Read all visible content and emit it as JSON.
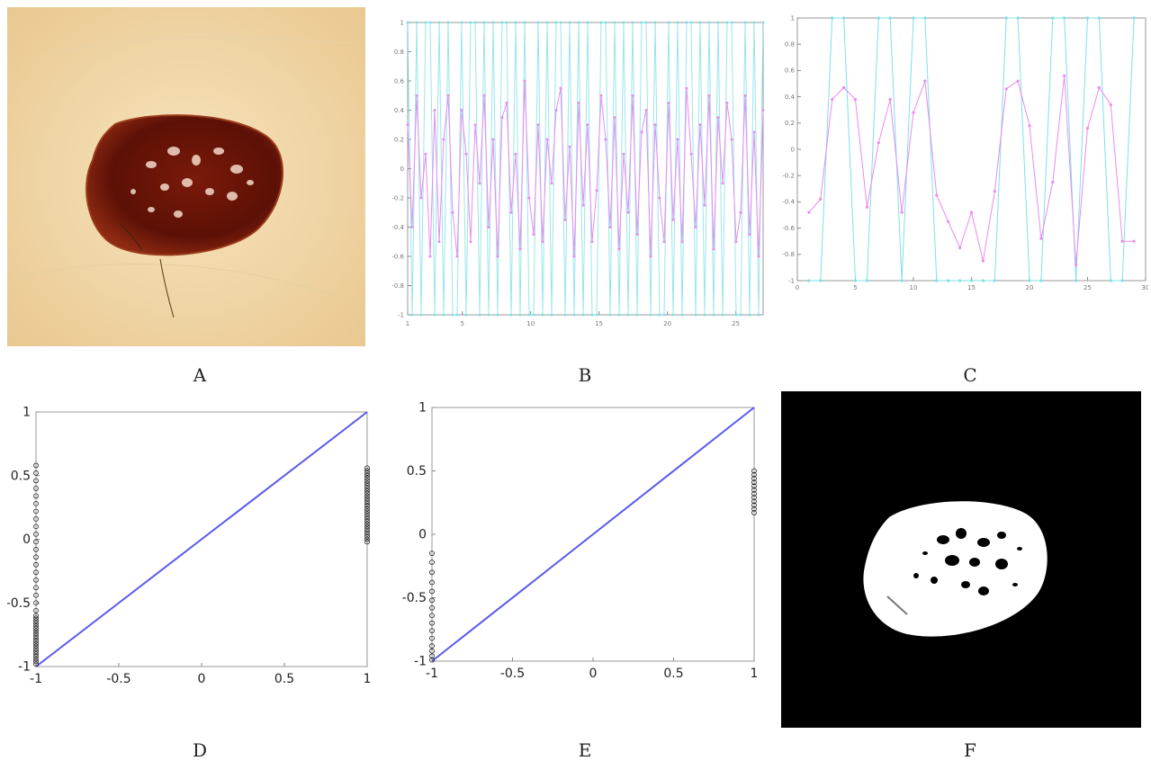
{
  "captions": [
    "A",
    "B",
    "C",
    "D",
    "E",
    "F"
  ],
  "colors": {
    "skin": "#f1d7a8",
    "lesion": "#6e1508",
    "lesion_edge": "#8e2a12",
    "cyan_series": "#7fe0e6",
    "magenta_series": "#e98bf0",
    "blue_series": "#5a5af0",
    "black_points": "#222222",
    "mask_bg": "#000000",
    "mask_fg": "#ffffff"
  },
  "icons": {
    "A": "dermoscopic-lesion-photo",
    "F": "binary-segmentation-mask"
  },
  "chart_data": [
    {
      "panel": "B",
      "type": "line",
      "title": "",
      "xlabel": "",
      "ylabel": "",
      "xlim": [
        1,
        27
      ],
      "ylim": [
        -1,
        1
      ],
      "xticks": [
        "1",
        "5",
        "10",
        "15",
        "20",
        "25"
      ],
      "yticks": [
        "1",
        "0.8",
        "0.6",
        "0.4",
        "0.2",
        "0",
        "-0.2",
        "-0.4",
        "-0.6",
        "-0.8",
        "-1"
      ],
      "series": [
        {
          "values": [
            1,
            -1,
            1,
            -1,
            1,
            1,
            -1,
            1,
            -1,
            1,
            -1,
            -1,
            1,
            -1,
            1,
            1,
            -1,
            1,
            -1,
            1,
            -1,
            1,
            1,
            -1,
            1,
            -1,
            1,
            -1,
            -1,
            1,
            -1,
            1,
            -1,
            1,
            1,
            -1,
            1,
            -1,
            1,
            -1,
            1,
            -1,
            -1,
            1,
            1,
            -1,
            1,
            -1,
            1,
            -1,
            1,
            -1,
            1,
            1,
            -1,
            1,
            -1,
            -1,
            1,
            -1,
            1,
            -1,
            1,
            1,
            -1,
            1,
            -1,
            1,
            -1,
            1,
            -1,
            1,
            1,
            -1,
            -1,
            1,
            -1,
            1,
            -1,
            1
          ]
        },
        {
          "values": [
            0.3,
            -0.4,
            0.5,
            -0.2,
            0.1,
            -0.6,
            0.4,
            -0.5,
            0.2,
            0.5,
            -0.3,
            -0.6,
            0.4,
            0.1,
            -0.5,
            0.3,
            -0.1,
            0.5,
            -0.4,
            0.2,
            -0.6,
            0.35,
            0.45,
            -0.3,
            0.1,
            -0.55,
            0.6,
            -0.2,
            -0.45,
            0.3,
            -0.5,
            0.2,
            -0.1,
            0.4,
            0.55,
            -0.35,
            0.15,
            -0.6,
            0.45,
            -0.25,
            0.3,
            -0.5,
            -0.15,
            0.5,
            0.2,
            -0.4,
            0.35,
            -0.55,
            0.1,
            -0.3,
            0.5,
            -0.45,
            0.25,
            0.4,
            -0.6,
            0.3,
            -0.2,
            -0.5,
            0.45,
            -0.35,
            0.2,
            -0.5,
            0.55,
            0.1,
            -0.4,
            0.3,
            -0.25,
            0.5,
            -0.55,
            0.35,
            -0.1,
            0.45,
            0.2,
            -0.5,
            -0.3,
            0.5,
            -0.45,
            0.25,
            -0.6,
            0.4
          ]
        }
      ]
    },
    {
      "panel": "C",
      "type": "line",
      "title": "",
      "xlabel": "",
      "ylabel": "",
      "xlim": [
        0,
        30
      ],
      "ylim": [
        -1,
        1
      ],
      "xticks": [
        "0",
        "5",
        "10",
        "15",
        "20",
        "25",
        "30"
      ],
      "yticks": [
        "1",
        "0.8",
        "0.6",
        "0.4",
        "0.2",
        "0",
        "-0.2",
        "-0.4",
        "-0.6",
        "-0.8",
        "-1"
      ],
      "series": [
        {
          "x": [
            1,
            2,
            3,
            4,
            5,
            6,
            7,
            8,
            9,
            10,
            11,
            12,
            13,
            14,
            15,
            16,
            17,
            18,
            19,
            20,
            21,
            22,
            23,
            24,
            25,
            26,
            27,
            28,
            29
          ],
          "values": [
            -1,
            -1,
            1,
            1,
            -1,
            -1,
            1,
            1,
            -1,
            1,
            1,
            -1,
            -1,
            -1,
            -1,
            -1,
            -1,
            1,
            1,
            -1,
            -1,
            1,
            1,
            -1,
            1,
            1,
            -1,
            -1,
            1
          ]
        },
        {
          "x": [
            1,
            2,
            3,
            4,
            5,
            6,
            7,
            8,
            9,
            10,
            11,
            12,
            13,
            14,
            15,
            16,
            17,
            18,
            19,
            20,
            21,
            22,
            23,
            24,
            25,
            26,
            27,
            28,
            29
          ],
          "values": [
            -0.48,
            -0.38,
            0.38,
            0.47,
            0.38,
            -0.44,
            0.05,
            0.38,
            -0.48,
            0.28,
            0.52,
            -0.35,
            -0.55,
            -0.75,
            -0.48,
            -0.85,
            -0.32,
            0.46,
            0.52,
            0.18,
            -0.68,
            -0.25,
            0.56,
            -0.88,
            0.16,
            0.47,
            0.34,
            -0.7,
            -0.7
          ]
        }
      ]
    },
    {
      "panel": "D",
      "type": "scatter",
      "title": "",
      "xlabel": "",
      "ylabel": "",
      "xlim": [
        -1,
        1
      ],
      "ylim": [
        -1,
        1
      ],
      "xticks": [
        "-1",
        "-0.5",
        "0",
        "0.5",
        "1"
      ],
      "yticks": [
        "1",
        "0.5",
        "0",
        "-0.5",
        "-1"
      ],
      "series": [
        {
          "x": [
            -1,
            1
          ],
          "values": [
            -1,
            1
          ]
        },
        {
          "x": [
            -1,
            -1,
            -1,
            -1,
            -1,
            -1,
            -1,
            -1,
            -1,
            -1,
            -1,
            -1,
            -1,
            -1,
            -1,
            -1,
            -1,
            -1,
            -1,
            -1,
            -1,
            -1,
            -1,
            -1,
            -1,
            -1,
            -1,
            -1,
            -1,
            -1,
            -1,
            -1,
            -1,
            -1,
            -1,
            -1,
            -1,
            -1,
            -1,
            -1
          ],
          "values": [
            0.58,
            0.52,
            0.46,
            0.4,
            0.34,
            0.28,
            0.22,
            0.16,
            0.1,
            0.04,
            -0.02,
            -0.08,
            -0.14,
            -0.2,
            -0.26,
            -0.32,
            -0.38,
            -0.44,
            -0.5,
            -0.56,
            -0.62,
            -0.66,
            -0.7,
            -0.74,
            -0.78,
            -0.82,
            -0.86,
            -0.9,
            -0.94,
            -0.98,
            -0.6,
            -0.64,
            -0.68,
            -0.72,
            -0.76,
            -0.8,
            -0.84,
            -0.88,
            -0.92,
            -0.96
          ]
        },
        {
          "x": [
            1,
            1,
            1,
            1,
            1,
            1,
            1,
            1,
            1,
            1,
            1,
            1,
            1,
            1,
            1,
            1,
            1,
            1,
            1,
            1,
            1,
            1,
            1,
            1,
            1,
            1,
            1,
            1,
            1,
            1
          ],
          "values": [
            0.56,
            0.54,
            0.52,
            0.5,
            0.48,
            0.46,
            0.44,
            0.42,
            0.4,
            0.38,
            0.36,
            0.34,
            0.32,
            0.3,
            0.28,
            0.26,
            0.24,
            0.22,
            0.2,
            0.18,
            0.16,
            0.14,
            0.12,
            0.1,
            0.08,
            0.06,
            0.04,
            0.02,
            0.0,
            -0.02
          ]
        }
      ]
    },
    {
      "panel": "E",
      "type": "scatter",
      "title": "",
      "xlabel": "",
      "ylabel": "",
      "xlim": [
        -1,
        1
      ],
      "ylim": [
        -1,
        1
      ],
      "xticks": [
        "-1",
        "-0.5",
        "0",
        "0.5",
        "1"
      ],
      "yticks": [
        "1",
        "0.5",
        "0",
        "-0.5",
        "-1"
      ],
      "series": [
        {
          "x": [
            -1,
            1
          ],
          "values": [
            -1,
            1
          ]
        },
        {
          "x": [
            -1,
            -1,
            -1,
            -1,
            -1,
            -1,
            -1,
            -1,
            -1,
            -1,
            -1,
            -1,
            -1,
            -1,
            -1
          ],
          "values": [
            -0.15,
            -0.22,
            -0.3,
            -0.38,
            -0.45,
            -0.52,
            -0.58,
            -0.64,
            -0.7,
            -0.76,
            -0.82,
            -0.88,
            -0.92,
            -0.96,
            -0.99
          ]
        },
        {
          "x": [
            1,
            1,
            1,
            1,
            1,
            1,
            1,
            1,
            1,
            1,
            1,
            1
          ],
          "values": [
            0.5,
            0.47,
            0.44,
            0.41,
            0.38,
            0.35,
            0.32,
            0.29,
            0.26,
            0.23,
            0.2,
            0.17
          ]
        }
      ]
    }
  ]
}
